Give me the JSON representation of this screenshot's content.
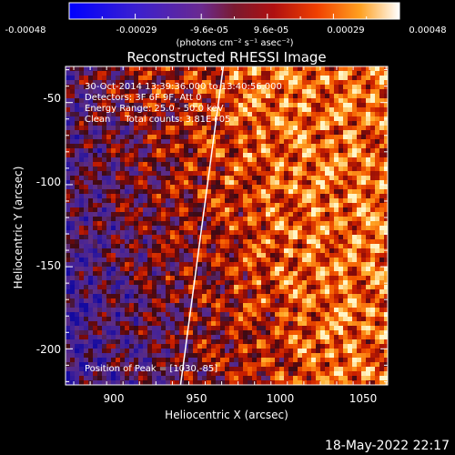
{
  "colorbar": {
    "ticks": [
      "-0.00048",
      "-0.00029",
      "-9.6e-05",
      "9.6e-05",
      "0.00029",
      "0.00048"
    ],
    "label": "(photons cm⁻² s⁻¹ asec⁻²)",
    "range": [
      -0.00048,
      0.00048
    ]
  },
  "chart_data": {
    "type": "heatmap",
    "title": "Reconstructed RHESSI Image",
    "xlabel": "Heliocentric X (arcsec)",
    "ylabel": "Heliocentric Y (arcsec)",
    "xlim": [
      870,
      1066
    ],
    "ylim": [
      -222,
      -28
    ],
    "xticks": [
      "900",
      "950",
      "1000",
      "1050"
    ],
    "yticks": [
      "-50",
      "-100",
      "-150",
      "-200"
    ],
    "annotations": [
      "30-Oct-2014 13:39:36.000 to 13:40:56.000",
      "Detectors: 3F 6F 9F, Att 0",
      "Energy Range: 25.0 - 50.0 keV",
      "Clean     Total counts: 3.81E+05"
    ],
    "peak_label": "Position of Peak = [1030,-85]",
    "peak": [
      1030,
      -85
    ],
    "limb_line": [
      [
        940,
        -222
      ],
      [
        966,
        -28
      ]
    ]
  },
  "timestamp": "18-May-2022 22:17"
}
